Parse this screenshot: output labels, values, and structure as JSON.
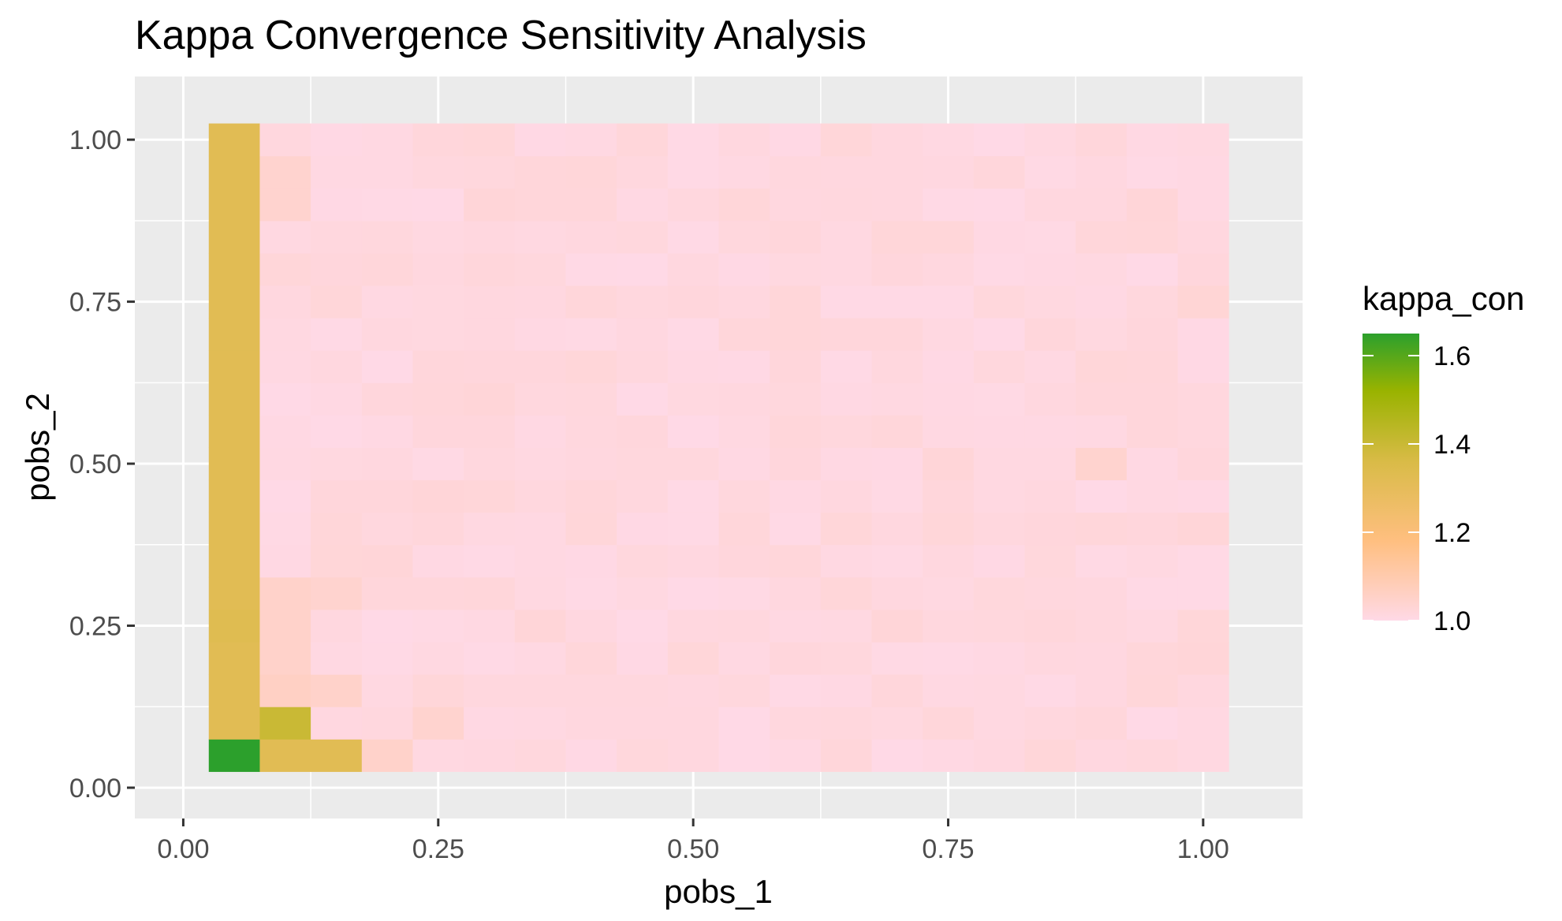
{
  "chart_data": {
    "type": "heatmap",
    "title": "Kappa Convergence Sensitivity Analysis",
    "xlabel": "pobs_1",
    "ylabel": "pobs_2",
    "x_ticks": [
      "0.00",
      "0.25",
      "0.50",
      "0.75",
      "1.00"
    ],
    "y_ticks": [
      "0.00",
      "0.25",
      "0.50",
      "0.75",
      "1.00"
    ],
    "x_values": [
      0.05,
      0.1,
      0.15,
      0.2,
      0.25,
      0.3,
      0.35,
      0.4,
      0.45,
      0.5,
      0.55,
      0.6,
      0.65,
      0.7,
      0.75,
      0.8,
      0.85,
      0.9,
      0.95,
      1.0
    ],
    "y_values": [
      0.05,
      0.1,
      0.15,
      0.2,
      0.25,
      0.3,
      0.35,
      0.4,
      0.45,
      0.5,
      0.55,
      0.6,
      0.65,
      0.7,
      0.75,
      0.8,
      0.85,
      0.9,
      0.95,
      1.0
    ],
    "xlim": [
      -0.0475,
      1.0975
    ],
    "ylim": [
      -0.0475,
      1.0975
    ],
    "grid": true,
    "legend": {
      "title": "kappa_con",
      "position": "right",
      "range": [
        1.0,
        1.65
      ],
      "labels": [
        "1.6",
        "1.4",
        "1.2",
        "1.0"
      ],
      "label_values": [
        1.6,
        1.4,
        1.2,
        1.0
      ]
    },
    "colors": {
      "panel_background": "#EBEBEB",
      "grid_line": "#FFFFFF",
      "low": "#FFD9E6",
      "mid_low": "#FFBF80",
      "mid": "#D9BB47",
      "mid_high": "#99B300",
      "high": "#2CA02C"
    },
    "special_cells": [
      {
        "x": 0.05,
        "y": 0.05,
        "value": 1.65
      },
      {
        "x": 0.1,
        "y": 0.05,
        "value": 1.32
      },
      {
        "x": 0.15,
        "y": 0.05,
        "value": 1.32
      },
      {
        "x": 0.1,
        "y": 0.1,
        "value": 1.4
      },
      {
        "x": 0.05,
        "y": 0.1,
        "value": 1.32
      },
      {
        "x": 0.05,
        "y": 0.15,
        "value": 1.32
      },
      {
        "x": 0.05,
        "y": 0.2,
        "value": 1.32
      },
      {
        "x": 0.05,
        "y": 0.25,
        "value": 1.33
      },
      {
        "x": 0.05,
        "y": 0.3,
        "value": 1.32
      },
      {
        "x": 0.05,
        "y": 0.35,
        "value": 1.32
      },
      {
        "x": 0.05,
        "y": 0.4,
        "value": 1.32
      },
      {
        "x": 0.05,
        "y": 0.45,
        "value": 1.32
      },
      {
        "x": 0.05,
        "y": 0.5,
        "value": 1.32
      },
      {
        "x": 0.05,
        "y": 0.55,
        "value": 1.32
      },
      {
        "x": 0.05,
        "y": 0.6,
        "value": 1.32
      },
      {
        "x": 0.05,
        "y": 0.65,
        "value": 1.32
      },
      {
        "x": 0.05,
        "y": 0.7,
        "value": 1.32
      },
      {
        "x": 0.05,
        "y": 0.75,
        "value": 1.32
      },
      {
        "x": 0.05,
        "y": 0.8,
        "value": 1.32
      },
      {
        "x": 0.05,
        "y": 0.85,
        "value": 1.32
      },
      {
        "x": 0.05,
        "y": 0.9,
        "value": 1.32
      },
      {
        "x": 0.05,
        "y": 0.95,
        "value": 1.32
      },
      {
        "x": 0.05,
        "y": 1.0,
        "value": 1.32
      },
      {
        "x": 0.1,
        "y": 0.15,
        "value": 1.06
      },
      {
        "x": 0.15,
        "y": 0.15,
        "value": 1.05
      },
      {
        "x": 0.1,
        "y": 0.2,
        "value": 1.05
      },
      {
        "x": 0.1,
        "y": 0.25,
        "value": 1.05
      },
      {
        "x": 0.1,
        "y": 0.3,
        "value": 1.05
      },
      {
        "x": 0.15,
        "y": 0.3,
        "value": 1.04
      },
      {
        "x": 0.2,
        "y": 0.05,
        "value": 1.05
      },
      {
        "x": 0.25,
        "y": 0.1,
        "value": 1.04
      },
      {
        "x": 0.1,
        "y": 0.95,
        "value": 1.04
      },
      {
        "x": 0.1,
        "y": 0.9,
        "value": 1.04
      },
      {
        "x": 0.9,
        "y": 0.5,
        "value": 1.04
      },
      {
        "x": 1.0,
        "y": 0.75,
        "value": 1.03
      }
    ],
    "background_value_range": [
      1.0,
      1.025
    ]
  }
}
